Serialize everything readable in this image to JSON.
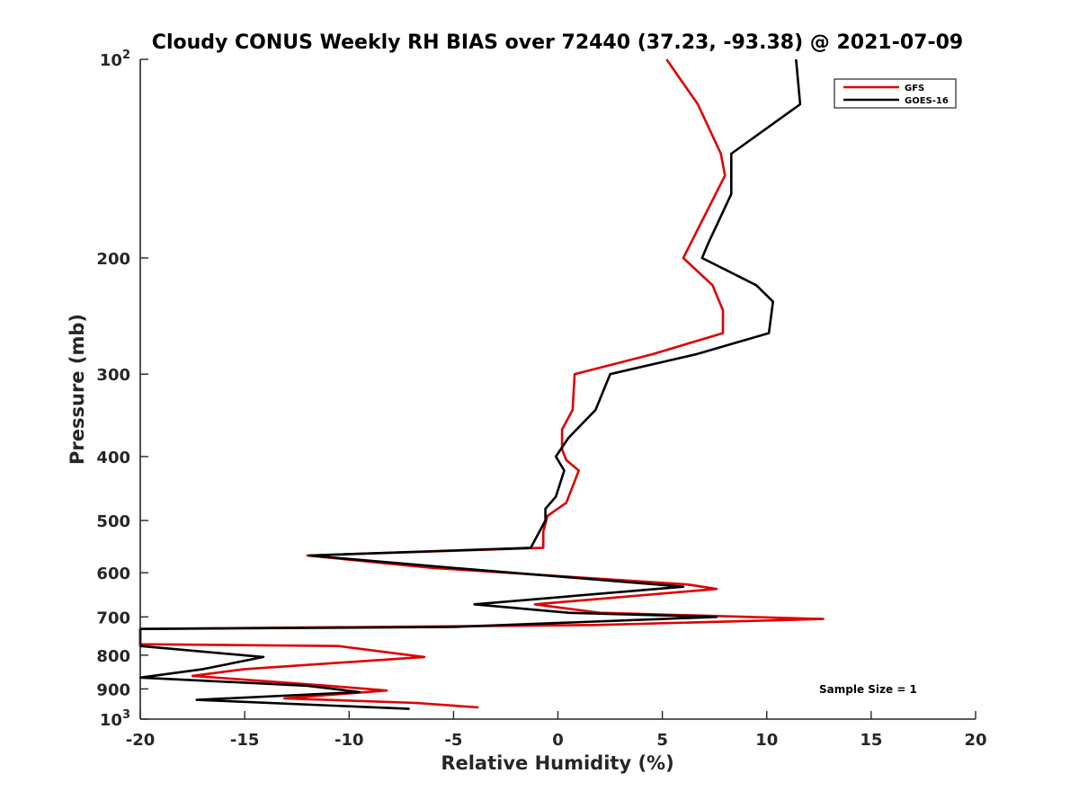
{
  "chart_data": {
    "type": "line",
    "title": "Cloudy CONUS Weekly RH BIAS over 72440 (37.23, -93.38) @ 2021-07-09",
    "xlabel": "Relative Humidity (%)",
    "ylabel": "Pressure (mb)",
    "xlim": [
      -20,
      20
    ],
    "ylim": [
      100,
      1000
    ],
    "y_scale": "log",
    "y_reversed": true,
    "grid": false,
    "legend_position": "top-right",
    "xticks": [
      -20,
      -15,
      -10,
      -5,
      0,
      5,
      10,
      15,
      20
    ],
    "xtick_labels": [
      "-20",
      "-15",
      "-10",
      "-5",
      "0",
      "5",
      "10",
      "15",
      "20"
    ],
    "yticks": [
      {
        "value": 100,
        "label": "10",
        "sup": "2"
      },
      {
        "value": 200,
        "label": "200",
        "sup": ""
      },
      {
        "value": 300,
        "label": "300",
        "sup": ""
      },
      {
        "value": 400,
        "label": "400",
        "sup": ""
      },
      {
        "value": 500,
        "label": "500",
        "sup": ""
      },
      {
        "value": 600,
        "label": "600",
        "sup": ""
      },
      {
        "value": 700,
        "label": "700",
        "sup": ""
      },
      {
        "value": 800,
        "label": "800",
        "sup": ""
      },
      {
        "value": 900,
        "label": "900",
        "sup": ""
      },
      {
        "value": 1000,
        "label": "10",
        "sup": "3"
      }
    ],
    "annotation": "Sample Size = 1",
    "series": [
      {
        "name": "GFS",
        "color": "#e00000",
        "points": [
          [
            5.2,
            100
          ],
          [
            6.7,
            117
          ],
          [
            7.8,
            139
          ],
          [
            8.0,
            150
          ],
          [
            6.0,
            200
          ],
          [
            7.4,
            220
          ],
          [
            7.9,
            240
          ],
          [
            7.9,
            260
          ],
          [
            4.5,
            280
          ],
          [
            0.8,
            300
          ],
          [
            0.7,
            340
          ],
          [
            0.2,
            364
          ],
          [
            0.2,
            390
          ],
          [
            0.4,
            405
          ],
          [
            1.0,
            420
          ],
          [
            0.4,
            470
          ],
          [
            -0.5,
            492
          ],
          [
            -0.7,
            520
          ],
          [
            -0.7,
            550
          ],
          [
            -12.0,
            565
          ],
          [
            -6.0,
            590
          ],
          [
            6.2,
            625
          ],
          [
            7.6,
            635
          ],
          [
            -1.1,
            670
          ],
          [
            2.0,
            690
          ],
          [
            12.7,
            705
          ],
          [
            1.8,
            720
          ],
          [
            -20.0,
            730
          ],
          [
            -20.0,
            770
          ],
          [
            -10.5,
            775
          ],
          [
            -6.4,
            805
          ],
          [
            -15.0,
            840
          ],
          [
            -17.5,
            860
          ],
          [
            -11.0,
            890
          ],
          [
            -8.2,
            905
          ],
          [
            -13.1,
            930
          ],
          [
            -6.8,
            945
          ],
          [
            -3.8,
            960
          ]
        ]
      },
      {
        "name": "GOES-16",
        "color": "#000000",
        "points": [
          [
            11.4,
            100
          ],
          [
            11.6,
            117
          ],
          [
            8.3,
            139
          ],
          [
            8.3,
            160
          ],
          [
            7.2,
            190
          ],
          [
            6.9,
            200
          ],
          [
            9.5,
            220
          ],
          [
            10.3,
            233
          ],
          [
            10.1,
            260
          ],
          [
            6.6,
            280
          ],
          [
            2.5,
            300
          ],
          [
            1.8,
            340
          ],
          [
            0.5,
            375
          ],
          [
            -0.1,
            400
          ],
          [
            0.3,
            420
          ],
          [
            -0.1,
            460
          ],
          [
            -0.6,
            480
          ],
          [
            -0.6,
            500
          ],
          [
            -1.3,
            550
          ],
          [
            -11.9,
            565
          ],
          [
            -5.0,
            590
          ],
          [
            6.0,
            630
          ],
          [
            -4.0,
            670
          ],
          [
            0.5,
            690
          ],
          [
            7.6,
            700
          ],
          [
            -5.0,
            725
          ],
          [
            -20.0,
            730
          ],
          [
            -20.0,
            775
          ],
          [
            -14.1,
            805
          ],
          [
            -17.0,
            840
          ],
          [
            -20.0,
            865
          ],
          [
            -12.0,
            890
          ],
          [
            -9.5,
            910
          ],
          [
            -17.3,
            935
          ],
          [
            -7.1,
            965
          ]
        ]
      }
    ]
  }
}
